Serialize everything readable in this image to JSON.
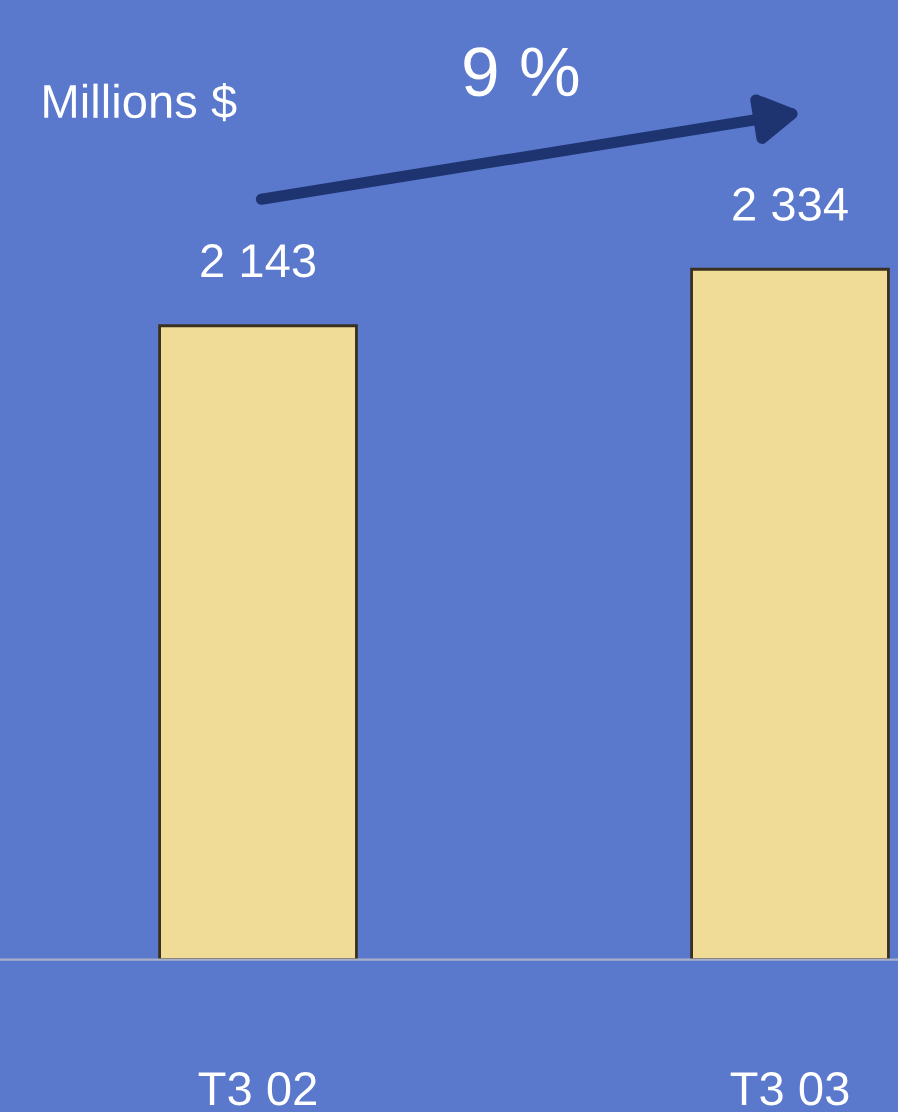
{
  "chart_data": {
    "type": "bar",
    "ylabel": "Millions $",
    "categories": [
      "T3 02",
      "T3 03"
    ],
    "values": [
      2143,
      2334
    ],
    "value_labels": [
      "2 143",
      "2 334"
    ],
    "color": "#f0dc96",
    "annotations": [
      "9 %"
    ],
    "grid": false,
    "legend": false
  }
}
